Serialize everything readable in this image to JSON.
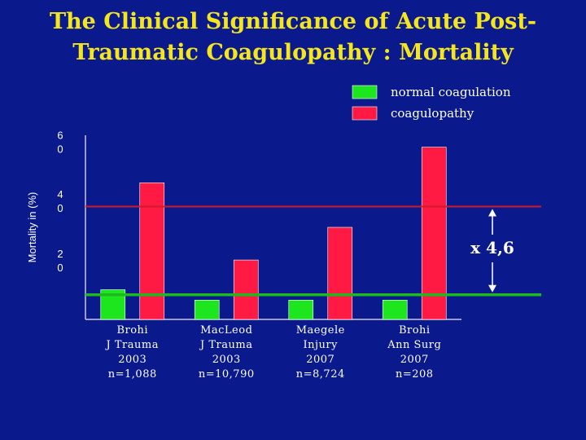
{
  "slide": {
    "title_line1": "The Clinical Significance of Acute Post-",
    "title_line2": "Traumatic Coagulopathy : Mortality"
  },
  "chart_data": {
    "type": "bar",
    "ylabel": "Mortality in (%)",
    "ylim": [
      0,
      62
    ],
    "yticks": [
      {
        "value": 20,
        "line1": "2",
        "line2": "0"
      },
      {
        "value": 40,
        "line1": "4",
        "line2": "0"
      },
      {
        "value": 60,
        "line1": "6",
        "line2": "0"
      }
    ],
    "categories": [
      [
        "Brohi",
        "J Trauma",
        "2003",
        "n=1,088"
      ],
      [
        "MacLeod",
        "J Trauma",
        "2003",
        "n=10,790"
      ],
      [
        "Maegele",
        "Injury",
        "2007",
        "n=8,724"
      ],
      [
        "Brohi",
        "Ann Surg",
        "2007",
        "n=208"
      ]
    ],
    "series": [
      {
        "name": "normal coagulation",
        "color": "#1ee61e",
        "values": [
          10,
          6.5,
          6.5,
          6.5
        ]
      },
      {
        "name": "coagulopathy",
        "color": "#ff1a44",
        "values": [
          46,
          20,
          31,
          58
        ]
      }
    ],
    "reference_lines": [
      {
        "value": 38,
        "color": "#d01a2a"
      },
      {
        "value": 8.3,
        "color": "#1fb81f"
      }
    ],
    "annotation": "x 4,6",
    "legend_position": "top-right"
  }
}
